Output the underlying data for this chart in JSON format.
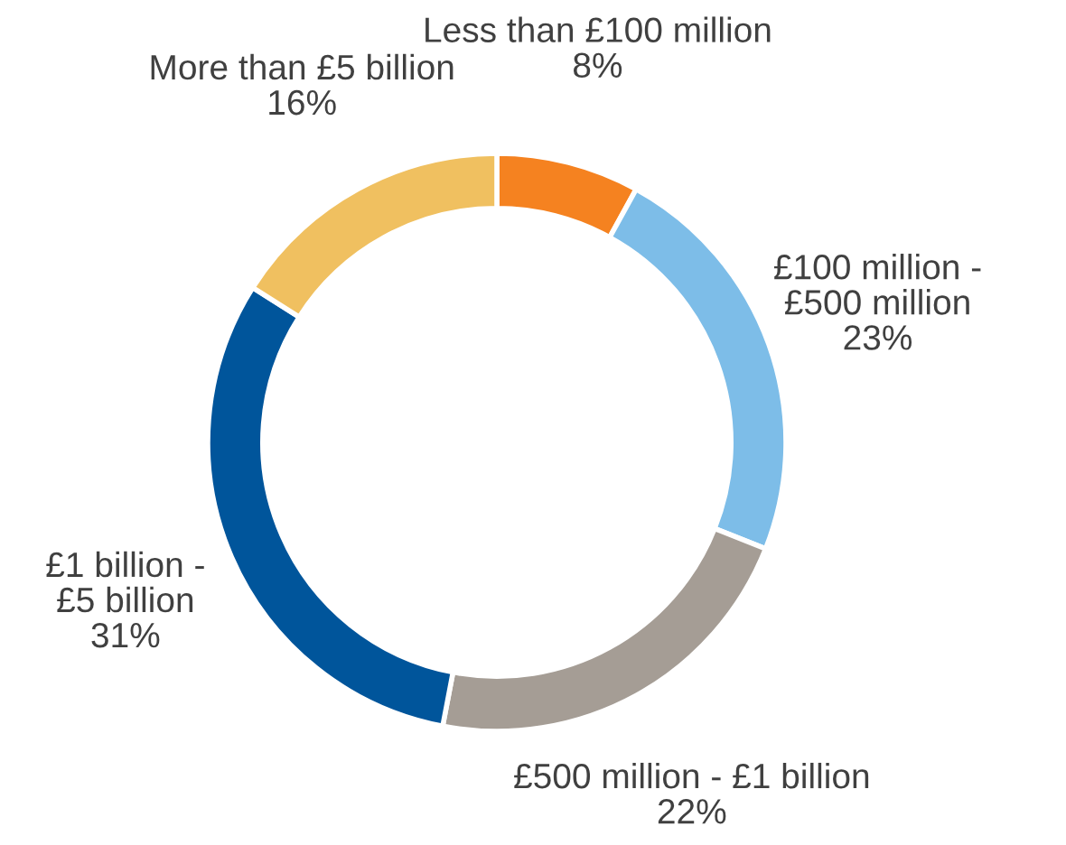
{
  "chart_data": {
    "type": "donut",
    "categories": [
      "Less than £100 million",
      "£100 million -\n£500 million",
      "£500 million - £1 billion",
      "£1 billion -\n£5 billion",
      "More than £5 billion"
    ],
    "values": [
      8,
      23,
      22,
      31,
      16
    ],
    "colors": [
      "#f58220",
      "#7dbde8",
      "#a59d95",
      "#00559b",
      "#f0c060"
    ],
    "value_labels": [
      "8%",
      "23%",
      "22%",
      "31%",
      "16%"
    ],
    "legend": false
  }
}
